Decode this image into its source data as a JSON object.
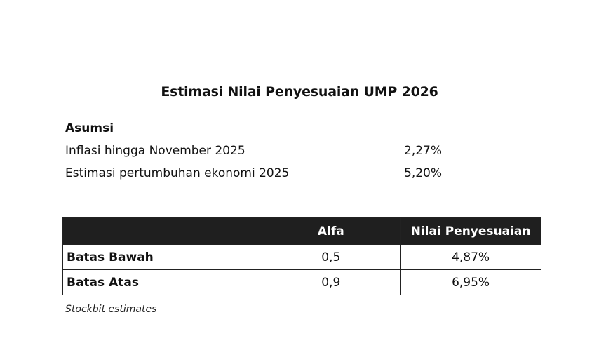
{
  "title": "Estimasi Nilai Penyesuaian UMP 2026",
  "assumptions": {
    "heading": "Asumsi",
    "items": [
      {
        "label": "Inflasi hingga November 2025",
        "value": "2,27%"
      },
      {
        "label": "Estimasi pertumbuhan ekonomi 2025",
        "value": "5,20%"
      }
    ]
  },
  "table": {
    "headers": [
      "",
      "Alfa",
      "Nilai Penyesuaian"
    ],
    "rows": [
      {
        "label": "Batas Bawah",
        "alfa": "0,5",
        "adjustment": "4,87%"
      },
      {
        "label": "Batas Atas",
        "alfa": "0,9",
        "adjustment": "6,95%"
      }
    ],
    "header_bg": "#1f1f1f"
  },
  "source": "Stockbit estimates"
}
